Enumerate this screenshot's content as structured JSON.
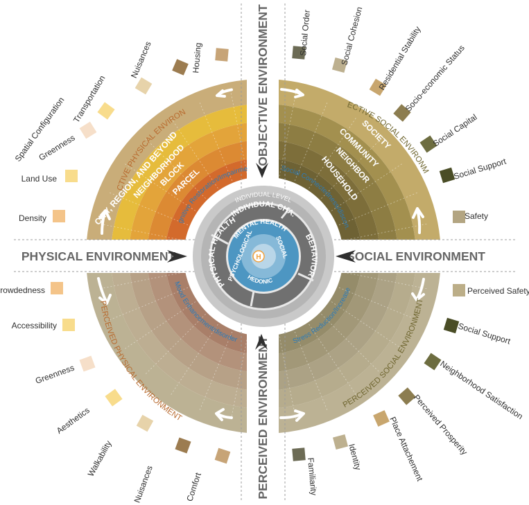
{
  "axes": {
    "objective": "OBJECTIVE ENVIRONMENT",
    "perceived": "PERCEIVED ENVIRONMENT",
    "physical": "PHYSICAL ENVIRONMENT",
    "social": "SOCIAL ENVIRONMENT"
  },
  "quadrant_titles": {
    "objective_physical": "OBJECTIVE PHYSICAL ENVIRONMENT",
    "objective_social": "OBJECTIVE SOCIAL ENVIRONMENT",
    "perceived_physical": "PERCEIVED PHYSICAL ENVIRONMENT",
    "perceived_social": "PERCEIVED SOCIAL ENVIRONMENT"
  },
  "physical_scales": [
    "CITY, REGION, AND  BEYOND",
    "NEIGHBORHOOD",
    "BLOCK",
    "PARCEL"
  ],
  "social_scales": [
    "SOCIETY",
    "COMMUNITY",
    "NEIGHBOR",
    "HOUSEHOLD"
  ],
  "pathways": {
    "cognitive": "Cognitive Restoration/Impairment",
    "social_conn": "Social Connectedness/discon.",
    "mood": "Mood Enhancement/disorder",
    "stress": "Stress Reduction/Increase"
  },
  "center": {
    "individual_level": "INDIVIDUAL LEVEL",
    "individual_cha": "INDIVIDUAL CHA.",
    "physical_health": "PHYSICAL HEALTH",
    "behavior": "BEHAVIOR",
    "mental_health": "MENTAL HEALTH",
    "psychological": "PSYCHOLOGICAL",
    "social": "SOCIAL",
    "hedonic": "HEDONIC",
    "core": "H"
  },
  "factors": {
    "objective_physical": [
      "Density",
      "Land Use",
      "Greenness",
      "Spatial Configuration",
      "Transportation",
      "Nuisances",
      "Housing"
    ],
    "objective_social": [
      "Social Order",
      "Social Cohesion",
      "Residential Stability",
      "Socio-economic Status",
      "Social Capital",
      "Social Support",
      "Safety"
    ],
    "perceived_physical": [
      "Crowdedness",
      "Accessibility",
      "Greenness",
      "Aesthetics",
      "Walkability",
      "Nuisances",
      "Comfort"
    ],
    "perceived_social": [
      "Perceived Safety",
      "Social Support",
      "Neighborhood  Satisfaction",
      "Perceived Prosperity",
      "Place Attachement",
      "Identity",
      "Familiarity"
    ]
  },
  "colors": {
    "physical_rings": [
      "#c9ad79",
      "#e6bc3c",
      "#e3a43a",
      "#dc8a33",
      "#d36a2c"
    ],
    "social_rings": [
      "#c3ab6a",
      "#a3904f",
      "#8d7d43",
      "#7d6e3a",
      "#6e6234"
    ],
    "perceived_physical_rings": [
      "#bcb294",
      "#bdae92",
      "#b7a187",
      "#b3927b",
      "#a97f69"
    ],
    "perceived_social_rings": [
      "#bcb294",
      "#b6ac8d",
      "#aca285",
      "#a29878",
      "#958c6a"
    ],
    "swatch_objective_physical": [
      "#f4c489",
      "#f8dc8c",
      "#f6dfc9",
      "#f8dc8c",
      "#e7d3aa",
      "#9c7c50",
      "#c7a477"
    ],
    "swatch_objective_social": [
      "#6c6b55",
      "#bdb08f",
      "#c8a66e",
      "#8c7d50",
      "#6d6d40",
      "#4a4d26",
      "#b3a582"
    ],
    "swatch_perceived_physical": [
      "#f4c489",
      "#f8dc8c",
      "#f6dfc9",
      "#f8dc8c",
      "#e7d3aa",
      "#9c7c50",
      "#c7a477"
    ],
    "swatch_perceived_social": [
      "#bcae88",
      "#4a4d26",
      "#6d6d40",
      "#8c7d50",
      "#c8a66e",
      "#bdb08f",
      "#6c6b55"
    ],
    "blue_text": "#2b7bb9",
    "core_orange": "#f2a13d"
  }
}
